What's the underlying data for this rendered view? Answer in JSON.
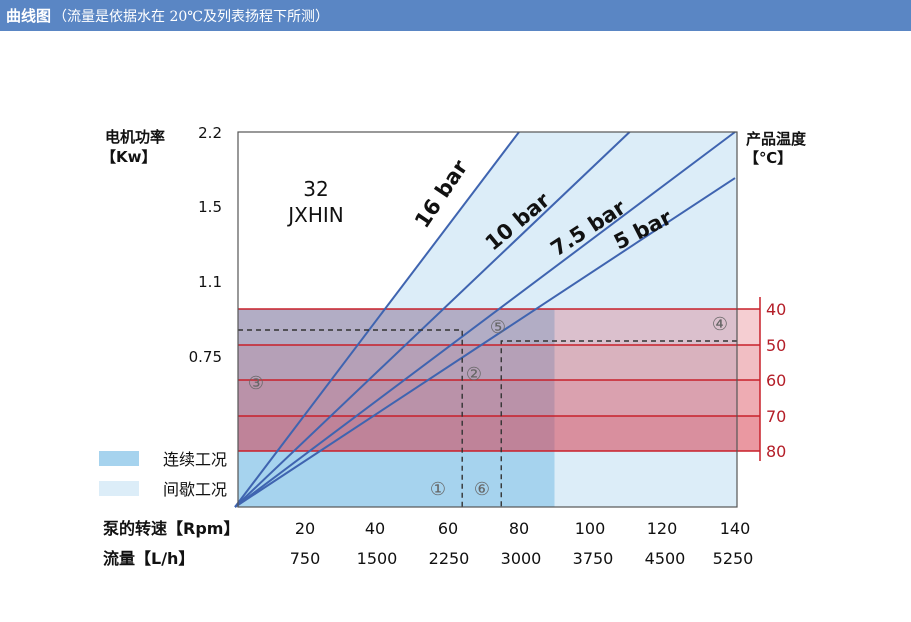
{
  "header": {
    "title": "曲线图",
    "subtitle": "（流量是依据水在 20℃及列表扬程下所测）"
  },
  "colors": {
    "header_bg": "#5a86c4",
    "axis": "#404040",
    "pressure_line": "#3f64b0",
    "continuous_fill": "#a6d3ee",
    "intermittent_fill": "#dcedf8",
    "temp_line": "#c8202a",
    "temp_label": "#b41e28"
  },
  "chart_data": {
    "type": "line",
    "model": {
      "number": "32",
      "name": "JXHIN"
    },
    "y_axis_left": {
      "label_line1": "电机功率",
      "label_line2": "【Kw】",
      "ticks": [
        0.75,
        1.1,
        1.5,
        2.2
      ],
      "tick_labels": [
        "0.75",
        "1.1",
        "1.5",
        "2.2"
      ]
    },
    "y_axis_right": {
      "label_line1": "产品温度",
      "label_line2": "【℃】",
      "ticks": [
        40,
        50,
        60,
        70,
        80
      ],
      "tick_labels": [
        "40",
        "50",
        "60",
        "70",
        "80"
      ]
    },
    "x_axis_speed": {
      "label": "泵的转速【Rpm】",
      "ticks": [
        20,
        40,
        60,
        80,
        100,
        120,
        140
      ],
      "tick_labels": [
        "20",
        "40",
        "60",
        "80",
        "100",
        "120",
        "140"
      ]
    },
    "x_axis_flow": {
      "label": "流量【L/h】",
      "tick_labels": [
        "750",
        "1500",
        "2250",
        "3000",
        "3750",
        "4500",
        "5250"
      ]
    },
    "series": [
      {
        "name": "16 bar",
        "points": [
          [
            0,
            0
          ],
          [
            80,
            2.2
          ]
        ]
      },
      {
        "name": "10 bar",
        "points": [
          [
            0,
            0
          ],
          [
            111,
            2.2
          ]
        ]
      },
      {
        "name": "7.5 bar",
        "points": [
          [
            0,
            0
          ],
          [
            140,
            2.2
          ]
        ]
      },
      {
        "name": "5 bar",
        "points": [
          [
            0,
            0
          ],
          [
            140,
            1.77
          ]
        ]
      }
    ],
    "regions": {
      "continuous_max_speed": 90,
      "temperature_levels": [
        40,
        50,
        60,
        70,
        80
      ]
    },
    "example_path": {
      "speed": [
        64,
        75
      ],
      "temperatures": [
        45,
        50
      ]
    },
    "legend": [
      {
        "label": "连续工况",
        "color": "#a6d3ee"
      },
      {
        "label": "间歇工况",
        "color": "#dcedf8"
      }
    ],
    "markers": [
      "①",
      "②",
      "③",
      "④",
      "⑤",
      "⑥"
    ],
    "legend_position": "bottom-left"
  }
}
